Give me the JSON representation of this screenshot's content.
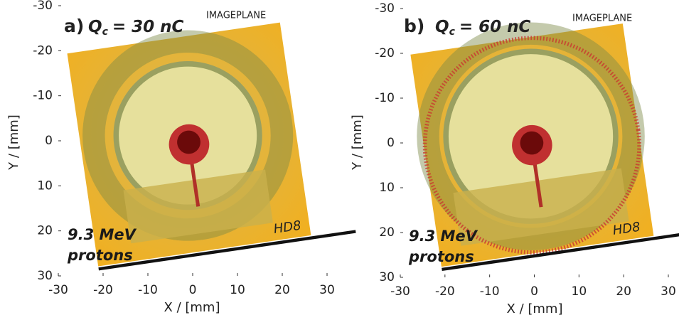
{
  "chart_data": [
    {
      "type": "image",
      "panel_label": "a)",
      "symbol": "Q",
      "subscript": "c",
      "charge": "= 30 nC",
      "detector": "IMAGEPLANE",
      "annotation": [
        "9.3 MeV",
        "protons"
      ],
      "marking": "HD8",
      "xlabel": "X / [mm]",
      "ylabel": "Y / [mm]",
      "xlim": [
        -30,
        30
      ],
      "ylim": [
        -30,
        30
      ],
      "y_inverted": true,
      "xticks": [
        -30,
        -20,
        -10,
        0,
        10,
        20,
        30
      ],
      "yticks": [
        -30,
        -20,
        -10,
        0,
        10,
        20,
        30
      ]
    },
    {
      "type": "image",
      "panel_label": "b)",
      "symbol": "Q",
      "subscript": "c",
      "charge": "= 60 nC",
      "detector": "IMAGEPLANE",
      "annotation": [
        "9.3 MeV",
        "protons"
      ],
      "marking": "HD8",
      "xlabel": "X / [mm]",
      "ylabel": "Y / [mm]",
      "xlim": [
        -30,
        30
      ],
      "ylim": [
        -30,
        30
      ],
      "y_inverted": true,
      "xticks": [
        -30,
        -20,
        -10,
        0,
        10,
        20,
        30
      ],
      "yticks": [
        -30,
        -20,
        -10,
        0,
        10,
        20,
        30
      ]
    }
  ]
}
